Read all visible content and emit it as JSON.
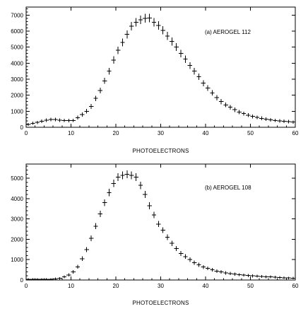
{
  "chart_data": [
    {
      "type": "scatter",
      "title": "",
      "xlabel": "PHOTOELECTRONS",
      "ylabel": "",
      "xlim": [
        0,
        60
      ],
      "ylim": [
        0,
        7500
      ],
      "xticks": [
        0,
        10,
        20,
        30,
        40,
        50,
        60
      ],
      "yticks": [
        0,
        1000,
        2000,
        3000,
        4000,
        5000,
        6000,
        7000
      ],
      "grid": false,
      "legend": "none",
      "annotation": "(a) AEROGEL 112",
      "annotation_position": "top-right",
      "series": [
        {
          "x": [
            0.5,
            1.5,
            2.5,
            3.5,
            4.5,
            5.5,
            6.5,
            7.5,
            8.5,
            9.5,
            10.5,
            11.5,
            12.5,
            13.5,
            14.5,
            15.5,
            16.5,
            17.5,
            18.5,
            19.5,
            20.5,
            21.5,
            22.5,
            23.5,
            24.5,
            25.5,
            26.5,
            27.5,
            28.5,
            29.5,
            30.5,
            31.5,
            32.5,
            33.5,
            34.5,
            35.5,
            36.5,
            37.5,
            38.5,
            39.5,
            40.5,
            41.5,
            42.5,
            43.5,
            44.5,
            45.5,
            46.5,
            47.5,
            48.5,
            49.5,
            50.5,
            51.5,
            52.5,
            53.5,
            54.5,
            55.5,
            56.5,
            57.5,
            58.5,
            59.5
          ],
          "y": [
            180,
            250,
            300,
            380,
            450,
            480,
            480,
            450,
            430,
            420,
            430,
            600,
            800,
            1000,
            1300,
            1800,
            2300,
            2900,
            3500,
            4200,
            4800,
            5300,
            5800,
            6300,
            6550,
            6700,
            6800,
            6820,
            6550,
            6350,
            6050,
            5700,
            5350,
            5000,
            4600,
            4250,
            3850,
            3500,
            3150,
            2750,
            2450,
            2150,
            1850,
            1600,
            1400,
            1250,
            1100,
            950,
            850,
            760,
            680,
            620,
            560,
            510,
            470,
            430,
            400,
            380,
            350,
            320
          ]
        }
      ]
    },
    {
      "type": "scatter",
      "title": "",
      "xlabel": "PHOTOELECTRONS",
      "ylabel": "",
      "xlim": [
        0,
        60
      ],
      "ylim": [
        0,
        5700
      ],
      "xticks": [
        0,
        10,
        20,
        30,
        40,
        50,
        60
      ],
      "yticks": [
        0,
        1000,
        2000,
        3000,
        4000,
        5000
      ],
      "grid": false,
      "legend": "none",
      "annotation": "(b) AEROGEL 108",
      "annotation_position": "top-right",
      "series": [
        {
          "x": [
            0.5,
            1.5,
            2.5,
            3.5,
            4.5,
            5.5,
            6.5,
            7.5,
            8.5,
            9.5,
            10.5,
            11.5,
            12.5,
            13.5,
            14.5,
            15.5,
            16.5,
            17.5,
            18.5,
            19.5,
            20.5,
            21.5,
            22.5,
            23.5,
            24.5,
            25.5,
            26.5,
            27.5,
            28.5,
            29.5,
            30.5,
            31.5,
            32.5,
            33.5,
            34.5,
            35.5,
            36.5,
            37.5,
            38.5,
            39.5,
            40.5,
            41.5,
            42.5,
            43.5,
            44.5,
            45.5,
            46.5,
            47.5,
            48.5,
            49.5,
            50.5,
            51.5,
            52.5,
            53.5,
            54.5,
            55.5,
            56.5,
            57.5,
            58.5,
            59.5
          ],
          "y": [
            30,
            40,
            40,
            40,
            40,
            40,
            60,
            80,
            150,
            250,
            400,
            650,
            1050,
            1500,
            2050,
            2650,
            3250,
            3800,
            4300,
            4750,
            5050,
            5150,
            5200,
            5150,
            5050,
            4650,
            4200,
            3650,
            3200,
            2750,
            2450,
            2100,
            1800,
            1550,
            1300,
            1150,
            1000,
            850,
            750,
            640,
            570,
            500,
            440,
            400,
            350,
            320,
            290,
            260,
            240,
            220,
            200,
            190,
            170,
            160,
            150,
            140,
            120,
            110,
            100,
            90
          ]
        }
      ]
    }
  ]
}
